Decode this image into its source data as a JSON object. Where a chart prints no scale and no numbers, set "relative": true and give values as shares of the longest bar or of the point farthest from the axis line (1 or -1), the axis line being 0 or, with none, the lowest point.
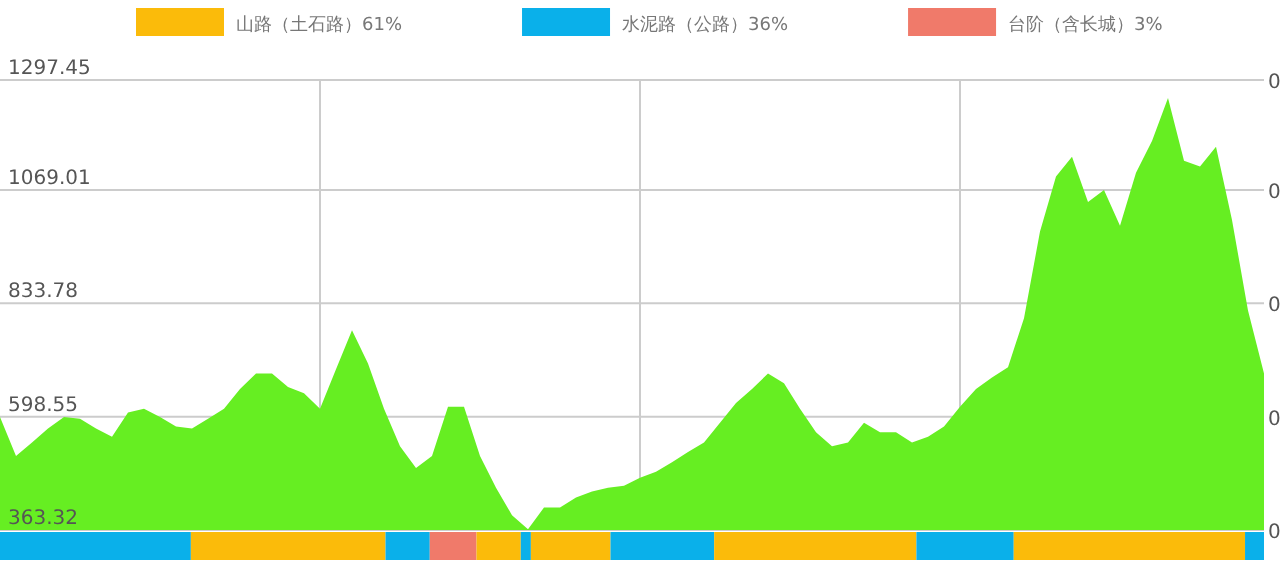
{
  "chart_data": [
    {
      "type": "area",
      "categories": [
        null,
        null,
        null,
        null,
        null,
        null,
        null,
        null,
        null,
        null,
        null,
        null,
        null,
        null,
        null,
        null,
        null,
        null,
        null,
        null,
        null,
        null,
        null,
        null,
        null,
        null,
        null,
        null,
        null,
        null,
        null,
        null,
        null,
        null,
        null,
        null,
        null,
        null,
        null,
        null,
        null,
        null,
        null,
        null,
        null,
        null,
        null,
        null,
        null,
        null,
        null,
        null,
        null,
        null,
        null,
        null,
        null,
        null,
        null,
        null,
        null,
        null,
        null,
        null,
        null,
        null,
        null,
        null,
        null,
        null,
        null,
        null,
        null,
        null,
        null,
        null,
        null,
        null,
        null,
        null
      ],
      "series": [
        {
          "color": "#66ee22",
          "values": [
            598,
            517,
            545,
            574,
            598,
            594,
            574,
            557,
            607,
            615,
            598,
            578,
            574,
            594,
            615,
            656,
            688,
            688,
            660,
            647,
            615,
            697,
            778,
            709,
            615,
            537,
            492,
            517,
            619,
            619,
            517,
            451,
            394,
            365,
            410,
            410,
            431,
            443,
            451,
            455,
            472,
            484,
            504,
            525,
            545,
            586,
            627,
            656,
            688,
            668,
            615,
            566,
            537,
            545,
            586,
            566,
            566,
            545,
            557,
            578,
            619,
            656,
            680,
            701,
            803,
            983,
            1097,
            1138,
            1044,
            1069,
            995,
            1105,
            1171,
            1260,
            1130,
            1118,
            1159,
            1007,
            819,
            688
          ]
        }
      ],
      "ylim": [
        363.32,
        1297.45
      ],
      "yticks": [
        363.32,
        598.55,
        833.78,
        1069.01,
        1297.45
      ],
      "annotations": [
        "0",
        "0",
        "0",
        "0",
        "0"
      ],
      "grid": true
    },
    {
      "type": "bar",
      "orientation": "horizontal",
      "stacked": true,
      "relative": true,
      "categories": [
        null
      ],
      "legend": "top",
      "series": [
        {
          "color": "#0ab0ea",
          "values": [
            0.151
          ]
        },
        {
          "name": "山路（土石路）61%",
          "color": "#fbbb0a",
          "values": [
            0.154
          ]
        },
        {
          "name": "水泥路（公路）36%",
          "color": "#0ab0ea",
          "values": [
            0.035
          ]
        },
        {
          "name": "台阶（含长城）3%",
          "color": "#f07a6a",
          "values": [
            0.037
          ]
        },
        {
          "color": "#fbbb0a",
          "values": [
            0.035
          ]
        },
        {
          "color": "#0ab0ea",
          "values": [
            0.008
          ]
        },
        {
          "color": "#fbbb0a",
          "values": [
            0.063
          ]
        },
        {
          "color": "#0ab0ea",
          "values": [
            0.082
          ]
        },
        {
          "color": "#fbbb0a",
          "values": [
            0.16
          ]
        },
        {
          "color": "#0ab0ea",
          "values": [
            0.077
          ]
        },
        {
          "color": "#fbbb0a",
          "values": [
            0.183
          ]
        },
        {
          "color": "#0ab0ea",
          "values": [
            0.015
          ]
        }
      ]
    }
  ]
}
